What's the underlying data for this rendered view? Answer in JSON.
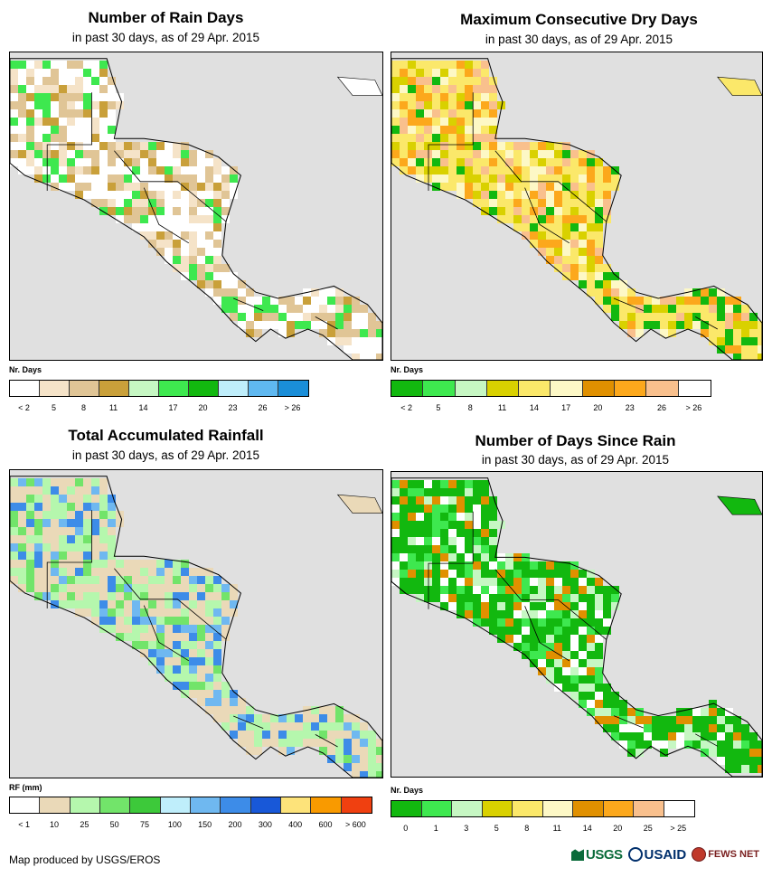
{
  "panels": [
    {
      "id": "rain-days",
      "title": "Number of Rain Days",
      "subtitle": "in past 30 days, as of 29 Apr. 2015",
      "legend_title": "Nr. Days",
      "legend_colors": [
        "#ffffff",
        "#f5e3c8",
        "#e0c596",
        "#c9a03a",
        "#c6f7c3",
        "#3ee84f",
        "#12b80f",
        "#bfeefb",
        "#5fb8f0",
        "#1a8ed8"
      ],
      "legend_labels": [
        "< 2",
        "5",
        "8",
        "11",
        "14",
        "17",
        "20",
        "23",
        "26",
        "> 26"
      ],
      "land_palette": [
        "#ffffff",
        "#ffffff",
        "#ffffff",
        "#f5e3c8",
        "#e0c596",
        "#e0c596",
        "#c9a03a",
        "#3ee84f"
      ]
    },
    {
      "id": "max-dry-days",
      "title": "Maximum Consecutive Dry Days",
      "subtitle": "in past 30 days, as of 29 Apr. 2015",
      "legend_title": "Nr. Days",
      "legend_colors": [
        "#12b80f",
        "#3ee84f",
        "#c6f7c3",
        "#d9d100",
        "#fbe86a",
        "#fdf8c6",
        "#e09000",
        "#fca81c",
        "#f9c08d",
        "#ffffff"
      ],
      "legend_labels": [
        "< 2",
        "5",
        "8",
        "11",
        "14",
        "17",
        "20",
        "23",
        "26",
        "> 26"
      ],
      "land_palette": [
        "#fbe86a",
        "#fbe86a",
        "#fdf8c6",
        "#f9c08d",
        "#fca81c",
        "#d9d100",
        "#fbe86a",
        "#12b80f"
      ]
    },
    {
      "id": "total-rainfall",
      "title": "Total Accumulated Rainfall",
      "subtitle": "in past 30 days, as of 29 Apr. 2015",
      "legend_title": "RF (mm)",
      "legend_colors": [
        "#ffffff",
        "#ead9b8",
        "#b5f7ad",
        "#72e46a",
        "#3dc93a",
        "#bfeefb",
        "#6fb8f0",
        "#3d8ce8",
        "#1858d8",
        "#fde37a",
        "#f99a00",
        "#f04010"
      ],
      "legend_labels": [
        "< 1",
        "10",
        "25",
        "50",
        "75",
        "100",
        "150",
        "200",
        "300",
        "400",
        "600",
        "> 600"
      ],
      "land_palette": [
        "#ead9b8",
        "#ead9b8",
        "#b5f7ad",
        "#72e46a",
        "#b5f7ad",
        "#6fb8f0",
        "#3d8ce8",
        "#ead9b8"
      ]
    },
    {
      "id": "days-since-rain",
      "title": "Number of Days Since Rain",
      "subtitle": "in past 30 days, as of 29 Apr. 2015",
      "legend_title": "Nr. Days",
      "legend_colors": [
        "#12b80f",
        "#3ee84f",
        "#c6f7c3",
        "#d9d100",
        "#fbe86a",
        "#fdf8c6",
        "#e09000",
        "#fca81c",
        "#f9c08d",
        "#ffffff"
      ],
      "legend_labels": [
        "0",
        "1",
        "3",
        "5",
        "8",
        "11",
        "14",
        "20",
        "25",
        "> 25"
      ],
      "land_palette": [
        "#12b80f",
        "#12b80f",
        "#12b80f",
        "#12b80f",
        "#3ee84f",
        "#e09000",
        "#c6f7c3",
        "#ffffff"
      ]
    }
  ],
  "colors": {
    "ocean": "#e0e0e0",
    "border": "#000000"
  },
  "credit": "Map produced by USGS/EROS",
  "logos": {
    "usgs": "USGS",
    "usaid": "USAID",
    "fews": "FEWS NET"
  }
}
